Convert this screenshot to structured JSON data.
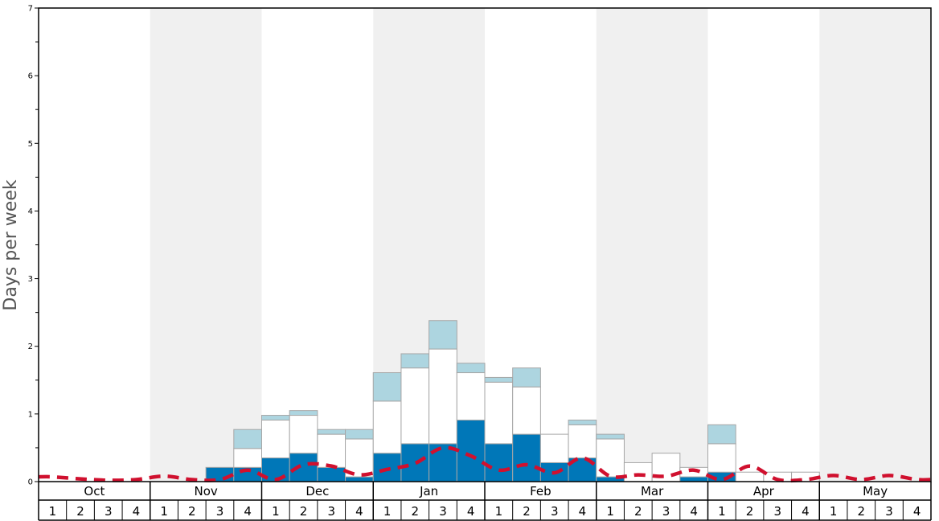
{
  "chart_data": {
    "type": "bar",
    "ylabel": "Days per week",
    "ylim": [
      0,
      7
    ],
    "yticks": [
      "0",
      "1",
      "2",
      "3",
      "4",
      "5",
      "6",
      "7"
    ],
    "months": [
      "Oct",
      "Nov",
      "Dec",
      "Jan",
      "Feb",
      "Mar",
      "Apr",
      "May"
    ],
    "weeks": [
      "1",
      "2",
      "3",
      "4"
    ],
    "stacked": true,
    "series": [
      {
        "values": [
          0,
          0,
          0,
          0,
          0,
          0,
          0.21,
          0.21,
          0.35,
          0.42,
          0.21,
          0.07,
          0.42,
          0.56,
          0.56,
          0.91,
          0.56,
          0.7,
          0.28,
          0.35,
          0.07,
          0,
          0,
          0.07,
          0.14,
          0,
          0,
          0,
          0,
          0,
          0,
          0
        ]
      },
      {
        "values": [
          0,
          0,
          0,
          0,
          0,
          0,
          0,
          0.28,
          0.56,
          0.56,
          0.49,
          0.56,
          0.77,
          1.12,
          1.4,
          0.7,
          0.91,
          0.7,
          0.42,
          0.49,
          0.56,
          0.28,
          0.42,
          0.14,
          0.42,
          0.14,
          0.14,
          0.14,
          0,
          0,
          0,
          0
        ]
      },
      {
        "values": [
          0,
          0,
          0,
          0,
          0,
          0,
          0,
          0.28,
          0.07,
          0.07,
          0.07,
          0.14,
          0.42,
          0.21,
          0.42,
          0.14,
          0.07,
          0.28,
          0,
          0.07,
          0.07,
          0,
          0,
          0,
          0.28,
          0,
          0,
          0,
          0,
          0,
          0,
          0
        ]
      },
      {
        "type": "line",
        "style": "dashed",
        "values": [
          0.07,
          0.04,
          0.02,
          0.03,
          0.08,
          0.03,
          0.03,
          0.17,
          0.03,
          0.25,
          0.23,
          0.1,
          0.18,
          0.27,
          0.5,
          0.38,
          0.17,
          0.25,
          0.13,
          0.35,
          0.08,
          0.1,
          0.08,
          0.17,
          0.03,
          0.23,
          0.03,
          0.03,
          0.09,
          0.03,
          0.09,
          0.03
        ]
      }
    ],
    "colors": {
      "series_1": "#0077b8",
      "series_2": "#ffffff",
      "series_3": "#add5e0",
      "line": "#d0102e",
      "bar_stroke": "#a6a6a6",
      "shade": "#f0f0f0"
    },
    "shaded_months": [
      "Nov",
      "Jan",
      "Mar",
      "May"
    ],
    "grid": false,
    "legend": "none"
  }
}
